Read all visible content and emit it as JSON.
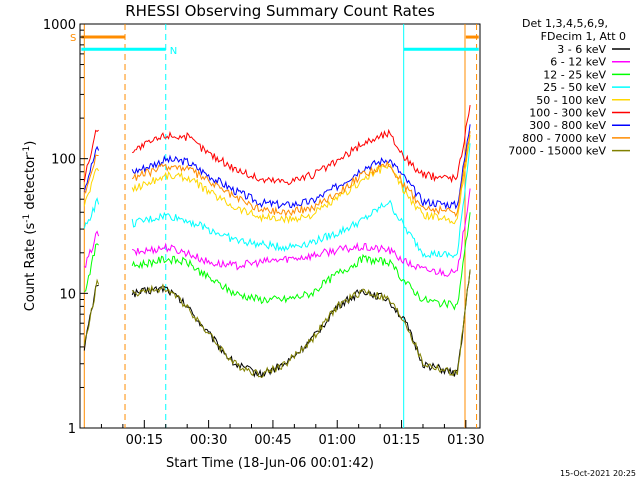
{
  "chart_data": {
    "type": "line",
    "title": "RHESSI Observing Summary Count Rates",
    "xlabel": "Start Time (18-Jun-06 00:01:42)",
    "ylabel": "Count Rate (s",
    "ylabel_sup1": "-1",
    "ylabel_mid": " detector",
    "ylabel_sup2": "-1",
    "ylabel_end": ")",
    "yscale": "log",
    "ylim": [
      1,
      1000
    ],
    "xlim_minutes": [
      0,
      93.3
    ],
    "x_ticks": [
      {
        "minute": 15,
        "label": "00:15"
      },
      {
        "minute": 30,
        "label": "00:30"
      },
      {
        "minute": 45,
        "label": "00:45"
      },
      {
        "minute": 60,
        "label": "01:00"
      },
      {
        "minute": 75,
        "label": "01:15"
      },
      {
        "minute": 90,
        "label": "01:30"
      }
    ],
    "y_ticks": [
      {
        "value": 1,
        "label": "1"
      },
      {
        "value": 10,
        "label": "10"
      },
      {
        "value": 100,
        "label": "100"
      },
      {
        "value": 1000,
        "label": "1000"
      }
    ],
    "legend_header": [
      "Det 1,3,4,5,6,9,",
      "FDecim 1, Att 0"
    ],
    "legend_position": "right",
    "series": [
      {
        "name": "3 - 6 keV",
        "color": "#000000",
        "values": [
          4,
          12,
          10,
          11,
          8,
          5,
          3,
          2.5,
          3,
          4.5,
          8,
          10.5,
          9,
          6,
          3,
          2.5,
          15
        ]
      },
      {
        "name": "6 - 12 keV",
        "color": "#ff00ff",
        "values": [
          15,
          28,
          20,
          22,
          20,
          17,
          16,
          17,
          18,
          19,
          21,
          22,
          21,
          17,
          15,
          14,
          60
        ]
      },
      {
        "name": "12 - 25 keV",
        "color": "#00ff00",
        "values": [
          10,
          24,
          16,
          18,
          17,
          13,
          10,
          9,
          9,
          10,
          14,
          18,
          17,
          12,
          9,
          8,
          40
        ]
      },
      {
        "name": "25 - 50 keV",
        "color": "#00ffff",
        "values": [
          30,
          48,
          33,
          38,
          35,
          30,
          25,
          23,
          22,
          24,
          28,
          35,
          48,
          30,
          20,
          19,
          130
        ]
      },
      {
        "name": "50 - 100 keV",
        "color": "#ffd700",
        "values": [
          45,
          85,
          60,
          75,
          73,
          57,
          44,
          37,
          35,
          38,
          50,
          70,
          90,
          55,
          38,
          35,
          150
        ]
      },
      {
        "name": "100 - 300 keV",
        "color": "#ff0000",
        "values": [
          70,
          170,
          115,
          150,
          145,
          110,
          85,
          70,
          68,
          75,
          95,
          130,
          155,
          100,
          75,
          72,
          250
        ]
      },
      {
        "name": "300 - 800 keV",
        "color": "#0000ff",
        "values": [
          60,
          120,
          80,
          98,
          95,
          75,
          58,
          47,
          45,
          48,
          62,
          85,
          100,
          70,
          48,
          45,
          180
        ]
      },
      {
        "name": "800 - 7000 keV",
        "color": "#ff8c00",
        "values": [
          55,
          110,
          72,
          88,
          85,
          68,
          52,
          42,
          40,
          43,
          56,
          76,
          90,
          62,
          43,
          40,
          160
        ]
      },
      {
        "name": "7000 - 15000 keV",
        "color": "#808000",
        "values": [
          4,
          12,
          10,
          11,
          8,
          5,
          3,
          2.5,
          3,
          4.5,
          8,
          10.5,
          9,
          6,
          3,
          2.5,
          15
        ]
      }
    ],
    "series_x_minutes": [
      1,
      4,
      12.5,
      20,
      25,
      30,
      36,
      42,
      48,
      54,
      60,
      66,
      72,
      76,
      80,
      88,
      91
    ],
    "data_gap_minutes": [
      4.5,
      12
    ],
    "markers": [
      {
        "label": "S",
        "color": "#ff8c00",
        "intervals": [
          [
            0.3,
            10.5
          ],
          [
            90,
            93
          ]
        ],
        "level": 800
      },
      {
        "label": "N",
        "color": "#00ffff",
        "intervals": [
          [
            0.3,
            20
          ],
          [
            75.5,
            93
          ]
        ],
        "level": 650
      }
    ],
    "vertical_lines": [
      {
        "minute": 1,
        "color": "#ff8c00",
        "style": "solid"
      },
      {
        "minute": 10.5,
        "color": "#ff8c00",
        "style": "dashed"
      },
      {
        "minute": 20,
        "color": "#00ffff",
        "style": "dashed"
      },
      {
        "minute": 75.5,
        "color": "#00ffff",
        "style": "solid"
      },
      {
        "minute": 89.8,
        "color": "#ff8c00",
        "style": "solid"
      },
      {
        "minute": 92.5,
        "color": "#ff8c00",
        "style": "dashed"
      }
    ]
  },
  "footer": {
    "timestamp": "15-Oct-2021 20:25"
  }
}
